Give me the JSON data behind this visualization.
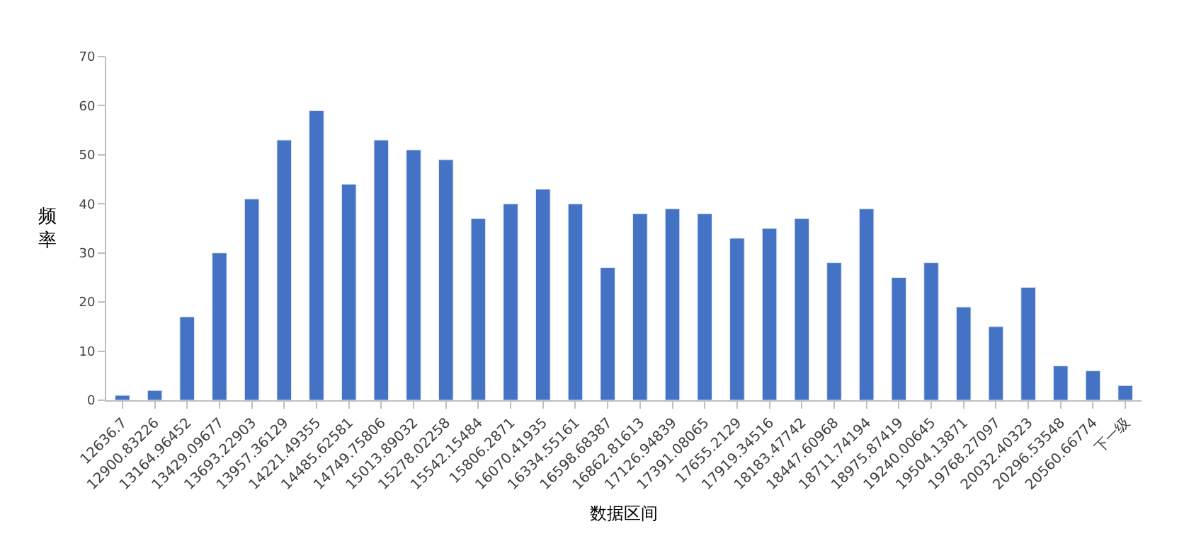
{
  "chart_data": {
    "type": "bar",
    "xlabel": "数据区间",
    "ylabel": "频率",
    "categories": [
      "12636.7",
      "12900.83226",
      "13164.96452",
      "13429.09677",
      "13693.22903",
      "13957.36129",
      "14221.49355",
      "14485.62581",
      "14749.75806",
      "15013.89032",
      "15278.02258",
      "15542.15484",
      "15806.2871",
      "16070.41935",
      "16334.55161",
      "16598.68387",
      "16862.81613",
      "17126.94839",
      "17391.08065",
      "17655.2129",
      "17919.34516",
      "18183.47742",
      "18447.60968",
      "18711.74194",
      "18975.87419",
      "19240.00645",
      "19504.13871",
      "19768.27097",
      "20032.40323",
      "20296.53548",
      "20560.66774",
      "下一级"
    ],
    "values": [
      1,
      2,
      17,
      30,
      41,
      53,
      59,
      44,
      53,
      51,
      49,
      37,
      40,
      43,
      40,
      27,
      38,
      39,
      38,
      33,
      35,
      37,
      28,
      39,
      25,
      28,
      19,
      15,
      23,
      7,
      6,
      3
    ],
    "color": "#4472c4",
    "ylim": [
      0,
      70
    ],
    "yticks": [
      0,
      10,
      20,
      30,
      40,
      50,
      60,
      70
    ],
    "legend": false
  }
}
